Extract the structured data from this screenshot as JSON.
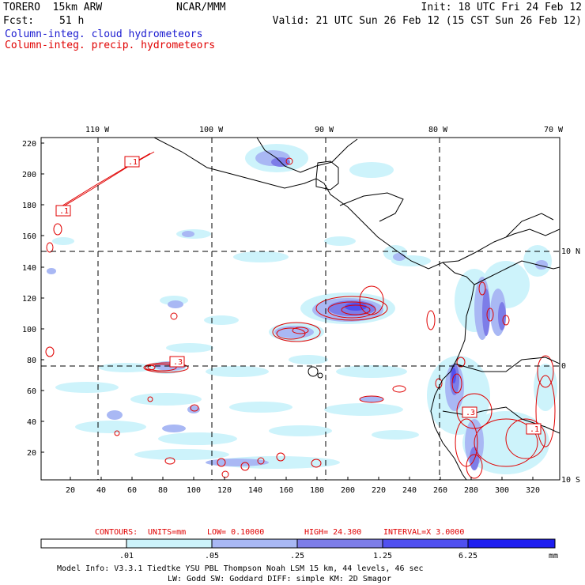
{
  "header": {
    "model": "TORERO  15km ARW",
    "org": "NCAR/MMM",
    "init": "Init: 18 UTC Fri 24 Feb 12",
    "fcst_label": "Fcst:",
    "fcst_value": "51 h",
    "valid": "Valid: 21 UTC Sun 26 Feb 12 (15 CST Sun 26 Feb 12)",
    "field1": "Column-integ. cloud hydrometeors",
    "field2": "Column-integ. precip. hydrometeors"
  },
  "colors": {
    "cloud": "#1a1ad0",
    "precip": "#e00000",
    "shade": [
      "#ffffff",
      "#cdf3fb",
      "#a9b8f4",
      "#7d7de8",
      "#5050f0",
      "#1e1ef0"
    ]
  },
  "axes": {
    "top_lon": [
      "110 W",
      "100 W",
      "90 W",
      "80 W",
      "70 W"
    ],
    "right_lat": [
      "10 N",
      "0",
      "10 S"
    ],
    "left_y": [
      "220",
      "200",
      "180",
      "160",
      "140",
      "120",
      "100",
      "80",
      "60",
      "40",
      "20"
    ],
    "bottom_x": [
      "20",
      "40",
      "60",
      "80",
      "100",
      "120",
      "140",
      "160",
      "180",
      "200",
      "220",
      "240",
      "260",
      "280",
      "300",
      "320"
    ]
  },
  "contour_labels": [
    ".1",
    ".1",
    ".3",
    ".3",
    ".1"
  ],
  "contours_info": {
    "label": "CONTOURS:",
    "units": "UNITS=mm",
    "low": "LOW= 0.10000",
    "high": "HIGH=  24.300",
    "interval": "INTERVAL=X  3.0000"
  },
  "colorbar": {
    "ticks": [
      ".01",
      ".05",
      ".25",
      "1.25",
      "6.25"
    ],
    "units": "mm"
  },
  "footer": {
    "line1": "Model Info: V3.3.1   Tiedtke YSU PBL  Thompson    Noah LSM  15 km,   44 levels,   46 sec",
    "line2": "LW: Godd SW: Goddard DIFF: simple KM: 2D Smagor"
  }
}
